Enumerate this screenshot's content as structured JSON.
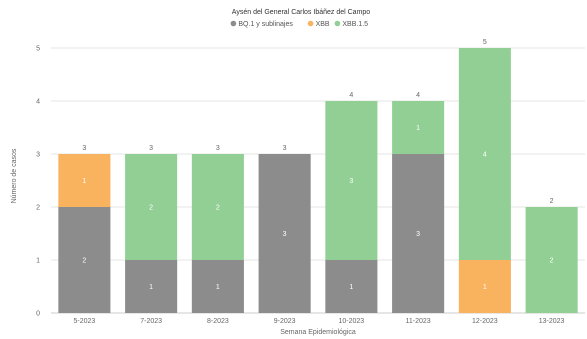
{
  "chart_data": {
    "type": "bar",
    "stacked": true,
    "title": "Aysén del General Carlos Ibáñez del Campo",
    "xlabel": "Semana Epidemiológica",
    "ylabel": "Número de casos",
    "ylim": [
      0,
      5
    ],
    "yticks": [
      "0",
      "1",
      "2",
      "3",
      "4",
      "5"
    ],
    "grid": true,
    "legend_position": "top",
    "categories": [
      "5-2023",
      "7-2023",
      "8-2023",
      "9-2023",
      "10-2023",
      "11-2023",
      "12-2023",
      "13-2023"
    ],
    "series": [
      {
        "name": "BQ.1 y sublinajes",
        "color": "#8c8c8c",
        "values": [
          2,
          1,
          1,
          3,
          1,
          3,
          0,
          0
        ]
      },
      {
        "name": "XBB",
        "color": "#f9b35f",
        "values": [
          1,
          0,
          0,
          0,
          0,
          0,
          1,
          0
        ]
      },
      {
        "name": "XBB.1.5",
        "color": "#92cf94",
        "values": [
          0,
          2,
          2,
          0,
          3,
          1,
          4,
          2
        ]
      }
    ],
    "totals": [
      3,
      3,
      3,
      3,
      4,
      4,
      5,
      2
    ]
  }
}
